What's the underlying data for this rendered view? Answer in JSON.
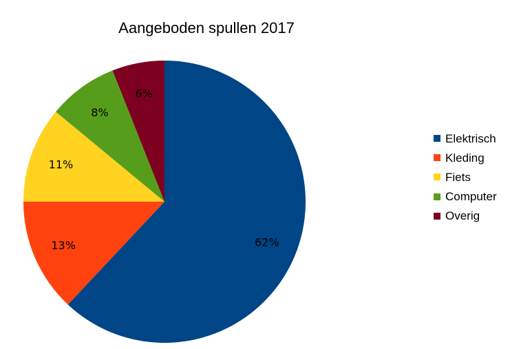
{
  "chart_data": {
    "type": "pie",
    "title": "Aangeboden spullen 2017",
    "categories": [
      "Elektrisch",
      "Kleding",
      "Fiets",
      "Computer",
      "Overig"
    ],
    "values": [
      62,
      13,
      11,
      8,
      6
    ],
    "data_labels": [
      "62%",
      "13%",
      "11%",
      "8%",
      "6%"
    ],
    "colors": [
      "#004586",
      "#ff420e",
      "#ffd320",
      "#579d1c",
      "#7e0021"
    ],
    "start_angle_deg": 0,
    "direction": "clockwise",
    "legend_position": "right"
  }
}
